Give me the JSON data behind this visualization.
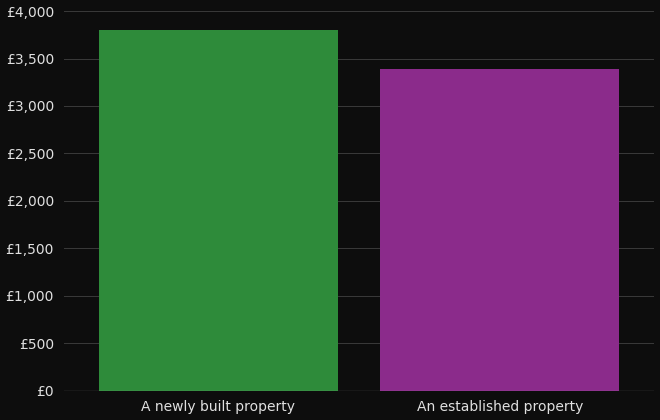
{
  "categories": [
    "A newly built property",
    "An established property"
  ],
  "values": [
    3800,
    3390
  ],
  "bar_colors": [
    "#2e8b3a",
    "#8b2b8b"
  ],
  "background_color": "#0d0d0d",
  "text_color": "#e0e0e0",
  "grid_color": "#3a3a3a",
  "ylim": [
    0,
    4000
  ],
  "yticks": [
    0,
    500,
    1000,
    1500,
    2000,
    2500,
    3000,
    3500,
    4000
  ],
  "ylabel_prefix": "£",
  "figsize": [
    6.6,
    4.2
  ],
  "dpi": 100
}
